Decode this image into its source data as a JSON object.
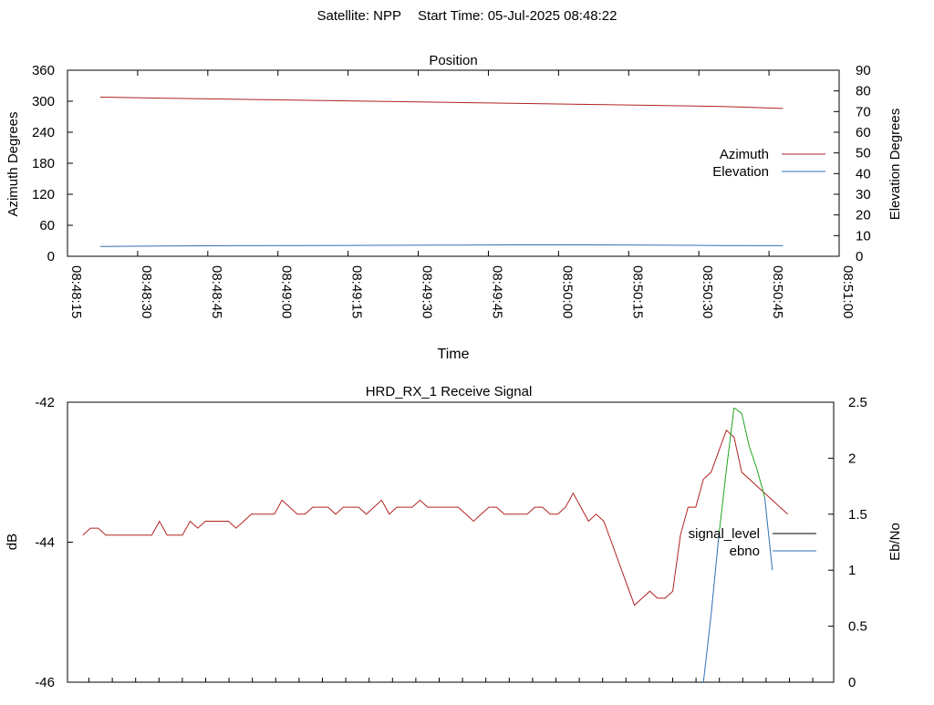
{
  "header": {
    "satellite": "Satellite: NPP",
    "start_time": "Start Time: 05-Jul-2025 08:48:22"
  },
  "colors": {
    "azimuth": "#b22222",
    "elevation": "#2e6fb5",
    "signal_level": "#b22222",
    "ebno_high": "#1fa51f",
    "ebno_low": "#2e6fb5",
    "axis": "#000000"
  },
  "chart_data": [
    {
      "type": "line",
      "title": "Position",
      "xlabel": "Time",
      "ylabel": "Azimuth Degrees",
      "y2label": "Elevation Degrees",
      "xlim": [
        0,
        165
      ],
      "xticks": [
        {
          "t": 0,
          "label": "08:48:15"
        },
        {
          "t": 15,
          "label": "08:48:30"
        },
        {
          "t": 30,
          "label": "08:48:45"
        },
        {
          "t": 45,
          "label": "08:49:00"
        },
        {
          "t": 60,
          "label": "08:49:15"
        },
        {
          "t": 75,
          "label": "08:49:30"
        },
        {
          "t": 90,
          "label": "08:49:45"
        },
        {
          "t": 105,
          "label": "08:50:00"
        },
        {
          "t": 120,
          "label": "08:50:15"
        },
        {
          "t": 135,
          "label": "08:50:30"
        },
        {
          "t": 150,
          "label": "08:50:45"
        },
        {
          "t": 165,
          "label": "08:51:00"
        }
      ],
      "ylim": [
        0,
        360
      ],
      "yticks": [
        "0",
        "60",
        "120",
        "180",
        "240",
        "300",
        "360"
      ],
      "y2lim": [
        0,
        90
      ],
      "y2ticks": [
        "0",
        "10",
        "20",
        "30",
        "40",
        "50",
        "60",
        "70",
        "80",
        "90"
      ],
      "grid": false,
      "legend": "right",
      "series": [
        {
          "name": "Azimuth",
          "axis": "y",
          "x": [
            7,
            20,
            35,
            50,
            65,
            80,
            95,
            110,
            125,
            140,
            153
          ],
          "y": [
            308,
            306,
            304,
            302,
            300,
            298,
            296,
            294,
            292,
            290,
            286
          ]
        },
        {
          "name": "Elevation",
          "axis": "y2",
          "x": [
            7,
            20,
            35,
            50,
            65,
            80,
            95,
            110,
            125,
            140,
            153
          ],
          "y": [
            4.7,
            5.0,
            5.1,
            5.2,
            5.3,
            5.4,
            5.5,
            5.5,
            5.4,
            5.2,
            5.1
          ]
        }
      ]
    },
    {
      "type": "line",
      "title": "HRD_RX_1 Receive Signal",
      "xlabel": "",
      "ylabel": "dB",
      "y2label": "Eb/No",
      "xlim": [
        0,
        100
      ],
      "ylim": [
        -46,
        -42
      ],
      "yticks": [
        "-42",
        "-44",
        "-46"
      ],
      "y2lim": [
        0,
        2.5
      ],
      "y2ticks": [
        "0",
        "0.5",
        "1",
        "1.5",
        "2",
        "2.5"
      ],
      "grid": false,
      "legend": "right",
      "series": [
        {
          "name": "signal_level",
          "axis": "y",
          "x": [
            2,
            3,
            4,
            5,
            6,
            7,
            8,
            9,
            10,
            11,
            12,
            13,
            14,
            15,
            16,
            17,
            18,
            19,
            20,
            21,
            22,
            23,
            24,
            25,
            26,
            27,
            28,
            29,
            30,
            31,
            32,
            33,
            34,
            35,
            36,
            37,
            38,
            39,
            40,
            41,
            42,
            43,
            44,
            45,
            46,
            47,
            48,
            49,
            50,
            51,
            52,
            53,
            54,
            55,
            56,
            57,
            58,
            59,
            60,
            61,
            62,
            63,
            64,
            65,
            66,
            67,
            68,
            69,
            70,
            71,
            72,
            73,
            74,
            75,
            76,
            77,
            78,
            79,
            80,
            81,
            82,
            83,
            84,
            85,
            86,
            87,
            88,
            89,
            90,
            91,
            92,
            93,
            94
          ],
          "y": [
            -43.9,
            -43.8,
            -43.8,
            -43.9,
            -43.9,
            -43.9,
            -43.9,
            -43.9,
            -43.9,
            -43.9,
            -43.7,
            -43.9,
            -43.9,
            -43.9,
            -43.7,
            -43.8,
            -43.7,
            -43.7,
            -43.7,
            -43.7,
            -43.8,
            -43.7,
            -43.6,
            -43.6,
            -43.6,
            -43.6,
            -43.4,
            -43.5,
            -43.6,
            -43.6,
            -43.5,
            -43.5,
            -43.5,
            -43.6,
            -43.5,
            -43.5,
            -43.5,
            -43.6,
            -43.5,
            -43.4,
            -43.6,
            -43.5,
            -43.5,
            -43.5,
            -43.4,
            -43.5,
            -43.5,
            -43.5,
            -43.5,
            -43.5,
            -43.6,
            -43.7,
            -43.6,
            -43.5,
            -43.5,
            -43.6,
            -43.6,
            -43.6,
            -43.6,
            -43.5,
            -43.5,
            -43.6,
            -43.6,
            -43.5,
            -43.3,
            -43.5,
            -43.7,
            -43.6,
            -43.7,
            -44.0,
            -44.3,
            -44.6,
            -44.9,
            -44.8,
            -44.7,
            -44.8,
            -44.8,
            -44.7,
            -43.9,
            -43.5,
            -43.5,
            -43.1,
            -43.0,
            -42.7,
            -42.4,
            -42.5,
            -43.0,
            -43.1,
            -43.2,
            -43.3,
            -43.4,
            -43.5,
            -43.6
          ]
        },
        {
          "name": "ebno",
          "axis": "y2",
          "x": [
            83,
            84,
            85,
            86,
            87,
            88,
            89,
            90,
            91,
            92
          ],
          "y": [
            0,
            0.6,
            1.3,
            1.9,
            2.45,
            2.4,
            2.1,
            1.9,
            1.65,
            1.0
          ]
        }
      ]
    }
  ]
}
